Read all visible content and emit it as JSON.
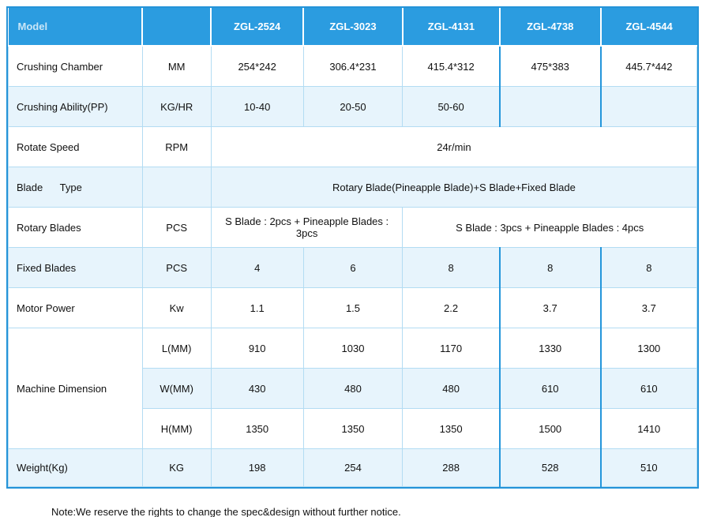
{
  "colors": {
    "header_blue": "#2b9ce0",
    "row_alt_blue": "#e7f4fc",
    "grid_light": "#b3dcf3",
    "grid_dark": "#2496db"
  },
  "table": {
    "header": {
      "model_label": "Model",
      "unit_label": "",
      "models": [
        "ZGL-2524",
        "ZGL-3023",
        "ZGL-4131",
        "ZGL-4738",
        "ZGL-4544"
      ]
    },
    "rows": {
      "crushing_chamber": {
        "label": "Crushing Chamber",
        "unit": "MM",
        "values": [
          "254*242",
          "306.4*231",
          "415.4*312",
          "475*383",
          "445.7*442"
        ]
      },
      "crushing_ability": {
        "label": "Crushing Ability(PP)",
        "unit": "KG/HR",
        "values": [
          "10-40",
          "20-50",
          "50-60",
          "",
          ""
        ]
      },
      "rotate_speed": {
        "label": "Rotate Speed",
        "unit": "RPM",
        "merged": "24r/min"
      },
      "blade_type": {
        "label": "Blade      Type",
        "unit": "",
        "merged": "Rotary Blade(Pineapple Blade)+S Blade+Fixed Blade"
      },
      "rotary_blades": {
        "label": "Rotary Blades",
        "unit": "PCS",
        "merged_left": "S Blade : 2pcs + Pineapple Blades : 3pcs",
        "merged_right": "S Blade : 3pcs + Pineapple Blades : 4pcs"
      },
      "fixed_blades": {
        "label": "Fixed Blades",
        "unit": "PCS",
        "values": [
          "4",
          "6",
          "8",
          "8",
          "8"
        ]
      },
      "motor_power": {
        "label": "Motor Power",
        "unit": "Kw",
        "values": [
          "1.1",
          "1.5",
          "2.2",
          "3.7",
          "3.7"
        ]
      },
      "machine_dimension": {
        "label": "Machine Dimension",
        "sub": [
          {
            "unit": "L(MM)",
            "values": [
              "910",
              "1030",
              "1170",
              "1330",
              "1300"
            ]
          },
          {
            "unit": "W(MM)",
            "values": [
              "430",
              "480",
              "480",
              "610",
              "610"
            ]
          },
          {
            "unit": "H(MM)",
            "values": [
              "1350",
              "1350",
              "1350",
              "1500",
              "1410"
            ]
          }
        ]
      },
      "weight": {
        "label": "Weight(Kg)",
        "unit": "KG",
        "values": [
          "198",
          "254",
          "288",
          "528",
          "510"
        ]
      }
    }
  },
  "note": "Note:We reserve the rights to change the spec&design without further notice."
}
